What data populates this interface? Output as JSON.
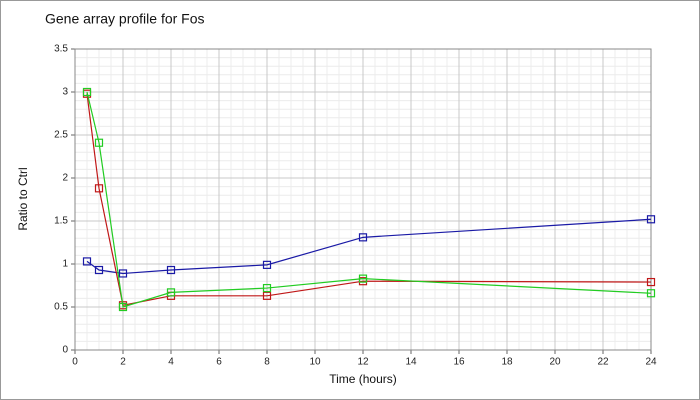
{
  "chart_data": {
    "type": "line",
    "title": "Gene array profile for Fos",
    "x_label": "Time (hours)",
    "y_label": "Ratio to Ctrl",
    "x": [
      0.5,
      1,
      2,
      4,
      8,
      12,
      24
    ],
    "series": [
      {
        "color": "#1a1aa6",
        "values": [
          1.03,
          0.93,
          0.89,
          0.93,
          0.99,
          1.31,
          1.52
        ]
      },
      {
        "color": "#c01818",
        "values": [
          2.98,
          1.88,
          0.52,
          0.63,
          0.63,
          0.8,
          0.79
        ]
      },
      {
        "color": "#22cc22",
        "values": [
          3.0,
          2.41,
          0.5,
          0.67,
          0.72,
          0.83,
          0.66
        ]
      }
    ],
    "xlim": [
      0,
      24
    ],
    "xticks": [
      0,
      2,
      4,
      6,
      8,
      10,
      12,
      14,
      16,
      18,
      20,
      22,
      24
    ],
    "ylim": [
      0,
      3.5
    ],
    "yticks": [
      0,
      0.5,
      1,
      1.5,
      2,
      2.5,
      3,
      3.5
    ],
    "grid": true
  }
}
